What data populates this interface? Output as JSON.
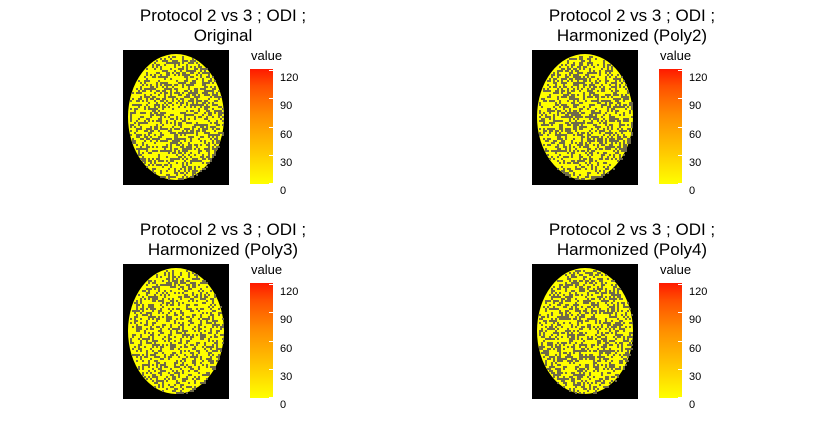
{
  "colors": {
    "background": "#000000",
    "brain_fill": "#ffff00",
    "brain_noise": "#6f6a4a",
    "scale_low": "#ffff00",
    "scale_high": "#ff1a00"
  },
  "chart_data": [
    {
      "type": "heatmap",
      "title_line1": "Protocol 2 vs 3 ; ODI ;",
      "title_line2": "Original",
      "legend_title": "value",
      "scale_range": [
        0,
        120
      ],
      "ticks": [
        "120",
        "90",
        "60",
        "30",
        "0"
      ]
    },
    {
      "type": "heatmap",
      "title_line1": "Protocol 2 vs 3 ; ODI ;",
      "title_line2": "Harmonized (Poly2)",
      "legend_title": "value",
      "scale_range": [
        0,
        120
      ],
      "ticks": [
        "120",
        "90",
        "60",
        "30",
        "0"
      ]
    },
    {
      "type": "heatmap",
      "title_line1": "Protocol 2 vs 3 ; ODI ;",
      "title_line2": "Harmonized (Poly3)",
      "legend_title": "value",
      "scale_range": [
        0,
        120
      ],
      "ticks": [
        "120",
        "90",
        "60",
        "30",
        "0"
      ]
    },
    {
      "type": "heatmap",
      "title_line1": "Protocol 2 vs 3 ; ODI ;",
      "title_line2": "Harmonized (Poly4)",
      "legend_title": "value",
      "scale_range": [
        0,
        120
      ],
      "ticks": [
        "120",
        "90",
        "60",
        "30",
        "0"
      ]
    }
  ]
}
